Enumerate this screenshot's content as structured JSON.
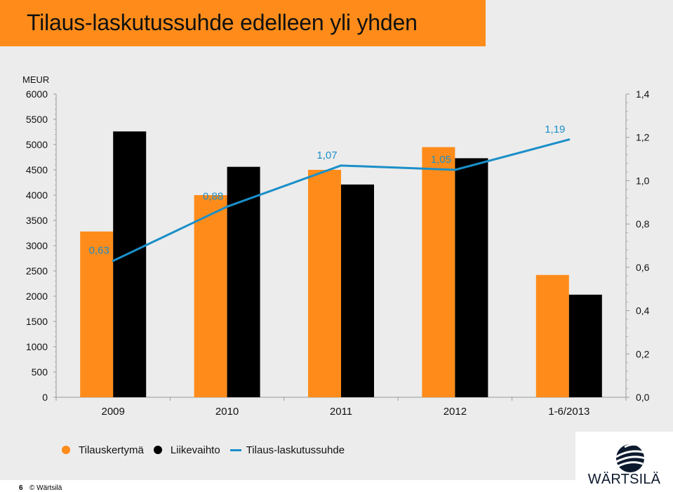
{
  "title": "Tilaus-laskutussuhde edelleen yli yhden",
  "chart_data": {
    "type": "bar",
    "unit_label": "MEUR",
    "categories": [
      "2009",
      "2010",
      "2011",
      "2012",
      "1-6/2013"
    ],
    "series": [
      {
        "name": "Tilauskertymä",
        "kind": "bar",
        "axis": "left",
        "color": "#ff8c1a",
        "values": [
          3280,
          4000,
          4500,
          4950,
          2420
        ]
      },
      {
        "name": "Liikevaihto",
        "kind": "bar",
        "axis": "left",
        "color": "#000000",
        "values": [
          5260,
          4560,
          4210,
          4730,
          2030
        ]
      },
      {
        "name": "Tilaus-laskutussuhde",
        "kind": "line",
        "axis": "right",
        "color": "#1a8fc8",
        "values": [
          0.63,
          0.88,
          1.07,
          1.05,
          1.19
        ],
        "labels": [
          "0,63",
          "0,88",
          "1,07",
          "1,05",
          "1,19"
        ]
      }
    ],
    "y_left": {
      "min": 0,
      "max": 6000,
      "ticks": [
        "0",
        "500",
        "1000",
        "1500",
        "2000",
        "2500",
        "3000",
        "3500",
        "4000",
        "4500",
        "5000",
        "5500",
        "6000"
      ]
    },
    "y_right": {
      "min": 0,
      "max": 1.4,
      "ticks": [
        "0,0",
        "0,2",
        "0,4",
        "0,6",
        "0,8",
        "1,0",
        "1,2",
        "1,4"
      ]
    },
    "grid": false,
    "legend_position": "bottom"
  },
  "footer": {
    "page_number": "6",
    "copyright": "© Wärtsilä"
  },
  "logo": {
    "text": "WÄRTSILÄ"
  }
}
